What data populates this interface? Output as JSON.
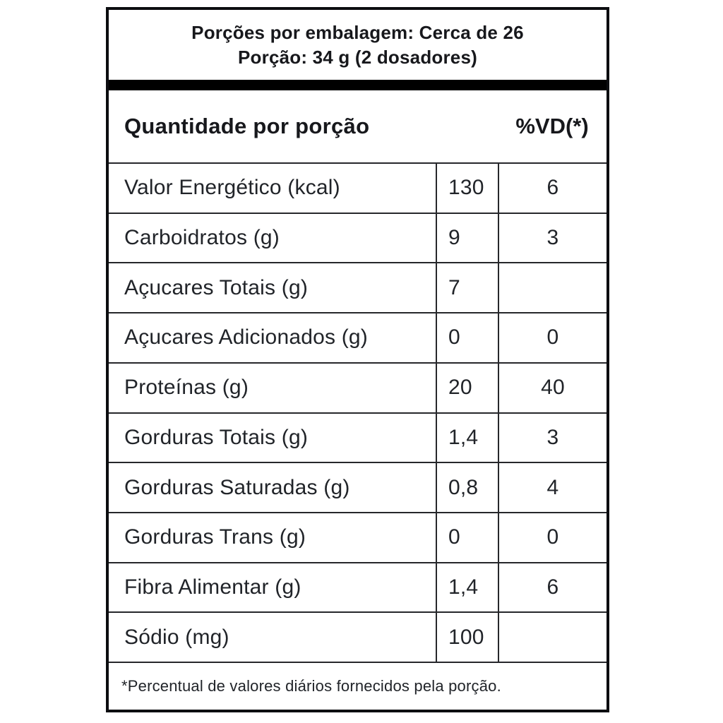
{
  "label": {
    "serving_header": {
      "servings_line": "Porções por embalagem: Cerca de 26",
      "portion_line": "Porção: 34 g (2 dosadores)"
    },
    "column_header": {
      "quantity_title": "Quantidade por porção",
      "dv_title": "%VD(*)"
    },
    "rows": [
      {
        "name": "Valor Energético (kcal)",
        "amount": "130",
        "dv": "6"
      },
      {
        "name": "Carboidratos (g)",
        "amount": "9",
        "dv": "3"
      },
      {
        "name": "Açucares Totais (g)",
        "amount": "7",
        "dv": ""
      },
      {
        "name": "Açucares Adicionados (g)",
        "amount": "0",
        "dv": "0"
      },
      {
        "name": "Proteínas (g)",
        "amount": "20",
        "dv": "40"
      },
      {
        "name": "Gorduras Totais (g)",
        "amount": "1,4",
        "dv": "3"
      },
      {
        "name": "Gorduras Saturadas (g)",
        "amount": "0,8",
        "dv": "4"
      },
      {
        "name": "Gorduras Trans (g)",
        "amount": "0",
        "dv": "0"
      },
      {
        "name": "Fibra Alimentar (g)",
        "amount": "1,4",
        "dv": "6"
      },
      {
        "name": "Sódio (mg)",
        "amount": "100",
        "dv": ""
      }
    ],
    "footnote": "*Percentual de valores diários fornecidos pela porção.",
    "colors": {
      "background": "#ffffff",
      "border": "#0c0d10",
      "grid_line": "#26272b",
      "text": "#212429",
      "bar": "#000000"
    }
  }
}
